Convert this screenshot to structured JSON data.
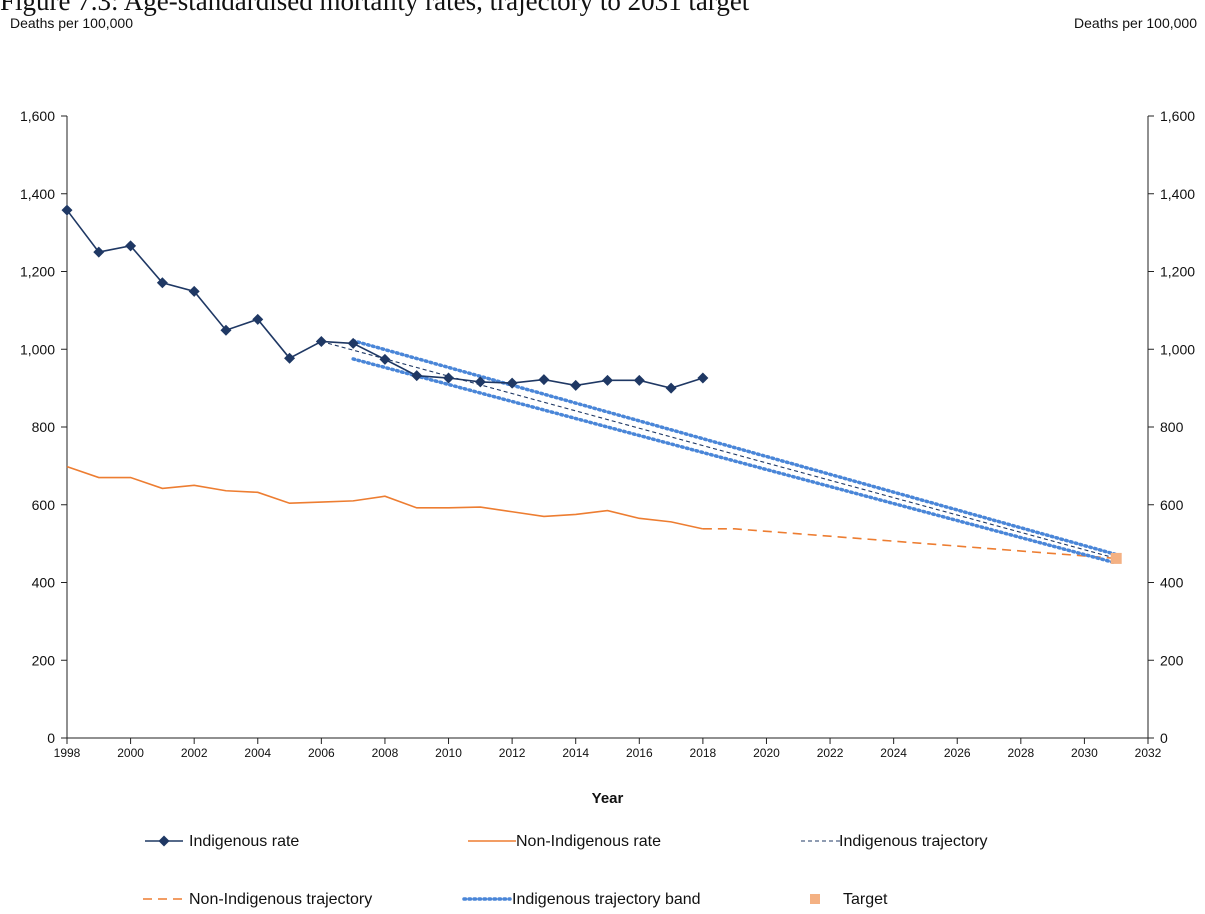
{
  "header": {
    "title": "Figure 7.3: Age-standardised mortality rates, trajectory to 2031 target",
    "left_unit": "Deaths per 100,000",
    "right_unit": "Deaths per 100,000"
  },
  "chart_data": {
    "type": "line",
    "title": "Figure 7.3: Age-standardised mortality rates, trajectory to 2031 target",
    "xlabel": "Year",
    "ylabel_left": "Deaths per 100,000",
    "ylabel_right": "Deaths per 100,000",
    "xlim": [
      1998,
      2032
    ],
    "ylim": [
      0,
      1600
    ],
    "x_ticks": [
      1998,
      2000,
      2002,
      2004,
      2006,
      2008,
      2010,
      2012,
      2014,
      2016,
      2018,
      2020,
      2022,
      2024,
      2026,
      2028,
      2030,
      2032
    ],
    "y_ticks": [
      0,
      200,
      400,
      600,
      800,
      1000,
      1200,
      1400,
      1600
    ],
    "y_tick_labels": [
      "0",
      "200",
      "400",
      "600",
      "800",
      "1,000",
      "1,200",
      "1,400",
      "1,600"
    ],
    "grid": false,
    "legend_position": "bottom",
    "series": [
      {
        "name": "Indigenous rate",
        "style": "line-diamond",
        "color": "#1f3864",
        "x": [
          1998,
          1999,
          2000,
          2001,
          2002,
          2003,
          2004,
          2005,
          2006,
          2007,
          2008,
          2009,
          2010,
          2011,
          2012,
          2013,
          2014,
          2015,
          2016,
          2017,
          2018
        ],
        "y": [
          1358,
          1250,
          1266,
          1171,
          1149,
          1049,
          1077,
          977,
          1020,
          1015,
          974,
          932,
          926,
          916,
          913,
          922,
          907,
          920,
          920,
          900,
          926
        ]
      },
      {
        "name": "Non-Indigenous rate",
        "style": "solid",
        "color": "#ed7d31",
        "x": [
          1998,
          1999,
          2000,
          2001,
          2002,
          2003,
          2004,
          2005,
          2006,
          2007,
          2008,
          2009,
          2010,
          2011,
          2012,
          2013,
          2014,
          2015,
          2016,
          2017,
          2018
        ],
        "y": [
          698,
          670,
          670,
          642,
          650,
          636,
          632,
          604,
          607,
          610,
          622,
          592,
          592,
          594,
          582,
          570,
          575,
          585,
          565,
          556,
          538
        ]
      },
      {
        "name": "Indigenous trajectory",
        "style": "dashed-fine",
        "color": "#1f3864",
        "x": [
          2006,
          2031
        ],
        "y": [
          1020,
          462
        ]
      },
      {
        "name": "Non-Indigenous trajectory",
        "style": "dashed",
        "color": "#ed7d31",
        "x": [
          2018,
          2019,
          2031
        ],
        "y": [
          538,
          538,
          462
        ]
      },
      {
        "name": "Indigenous trajectory band",
        "style": "dotted",
        "color": "#4a86d8",
        "bands": [
          {
            "x": [
              2007,
              2031
            ],
            "y": [
              1022,
              472
            ]
          },
          {
            "x": [
              2007,
              2031
            ],
            "y": [
              975,
              450
            ]
          }
        ]
      },
      {
        "name": "Target",
        "style": "square",
        "color": "#f4b183",
        "x": [
          2031
        ],
        "y": [
          462
        ]
      }
    ]
  }
}
